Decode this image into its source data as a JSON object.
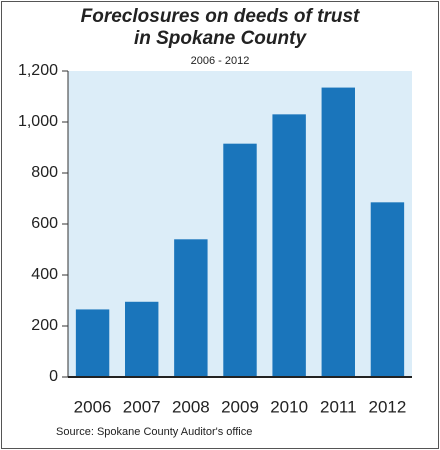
{
  "chart_data": {
    "type": "bar",
    "title": "Foreclosures on deeds of trust in Spokane County",
    "subtitle": "2006 - 2012",
    "source": "Source: Spokane County Auditor's office",
    "categories": [
      "2006",
      "2007",
      "2008",
      "2009",
      "2010",
      "2011",
      "2012"
    ],
    "values": [
      265,
      295,
      540,
      915,
      1030,
      1135,
      685
    ],
    "color": "#1a75bb",
    "plot_background": "#dcedf8",
    "ylim": [
      0,
      1200
    ],
    "yticks": [
      0,
      200,
      400,
      600,
      800,
      {
        "value": 1000,
        "label": "1,000"
      },
      {
        "value": 1200,
        "label": "1,200"
      }
    ],
    "grid": false
  }
}
